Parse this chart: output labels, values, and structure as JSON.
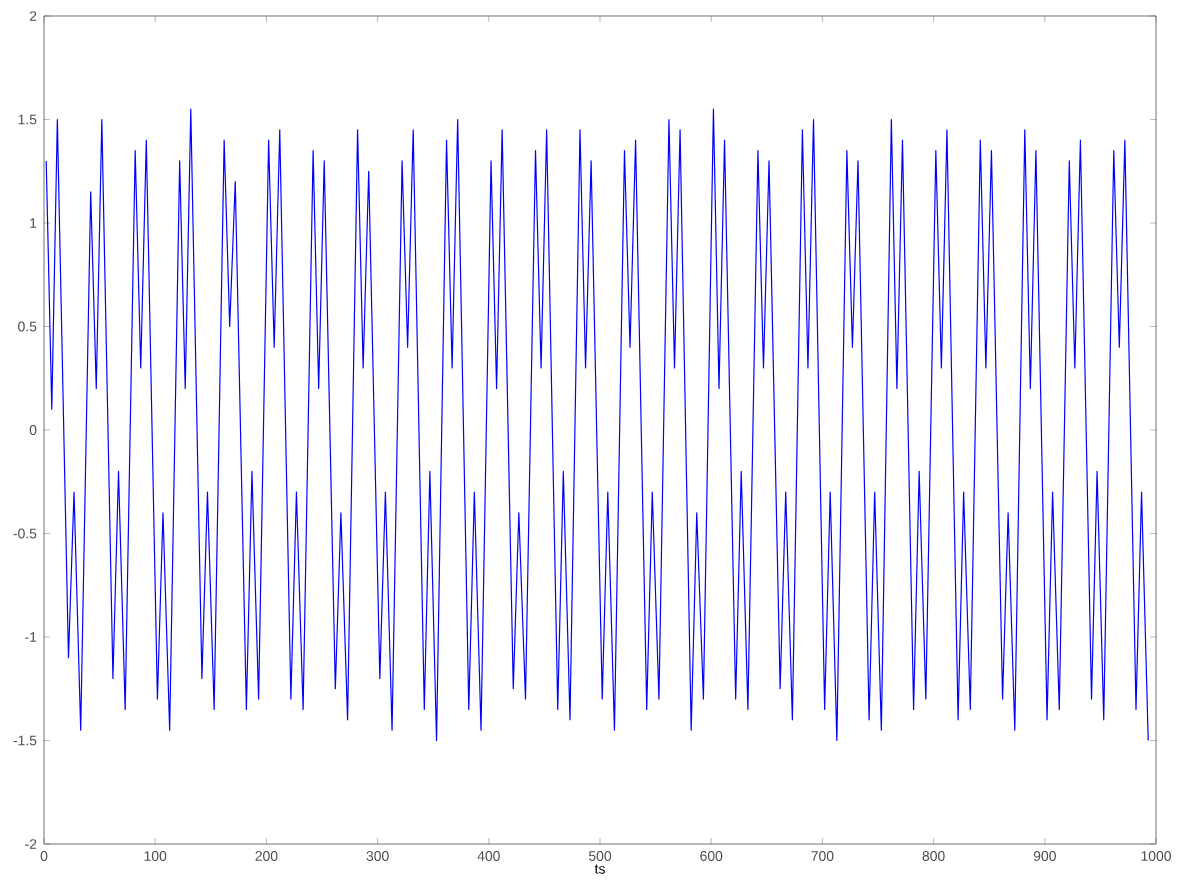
{
  "chart_data": {
    "type": "line",
    "xlabel": "ts",
    "color": "#0000ff",
    "xlim": [
      0,
      1000
    ],
    "ylim": [
      -2,
      2
    ],
    "xticks": [
      0,
      100,
      200,
      300,
      400,
      500,
      600,
      700,
      800,
      900,
      1000
    ],
    "yticks": [
      -2,
      -1.5,
      -1,
      -0.5,
      0,
      0.5,
      1,
      1.5,
      2
    ],
    "grid": false,
    "marker": "none",
    "line_style": "solid",
    "x": [
      2,
      7,
      12,
      22,
      27,
      33,
      42,
      47,
      52,
      62,
      67,
      73,
      82,
      87,
      92,
      102,
      107,
      113,
      122,
      127,
      132,
      142,
      147,
      153,
      162,
      167,
      172,
      182,
      187,
      193,
      202,
      207,
      212,
      222,
      227,
      233,
      242,
      247,
      252,
      262,
      267,
      273,
      282,
      287,
      292,
      302,
      307,
      313,
      322,
      327,
      332,
      342,
      347,
      353,
      362,
      367,
      372,
      382,
      387,
      393,
      402,
      407,
      412,
      422,
      427,
      433,
      442,
      447,
      452,
      462,
      467,
      473,
      482,
      487,
      492,
      502,
      507,
      513,
      522,
      527,
      532,
      542,
      547,
      553,
      562,
      567,
      572,
      582,
      587,
      593,
      602,
      607,
      612,
      622,
      627,
      633,
      642,
      647,
      652,
      662,
      667,
      673,
      682,
      687,
      692,
      702,
      707,
      713,
      722,
      727,
      732,
      742,
      747,
      753,
      762,
      767,
      772,
      782,
      787,
      793,
      802,
      807,
      812,
      822,
      827,
      833,
      842,
      847,
      852,
      862,
      867,
      873,
      882,
      887,
      892,
      902,
      907,
      913,
      922,
      927,
      932,
      942,
      947,
      953,
      962,
      967,
      972,
      982,
      987,
      993
    ],
    "values": [
      1.3,
      0.1,
      1.5,
      -1.1,
      -0.3,
      -1.45,
      1.15,
      0.2,
      1.5,
      -1.2,
      -0.2,
      -1.35,
      1.35,
      0.3,
      1.4,
      -1.3,
      -0.4,
      -1.45,
      1.3,
      0.2,
      1.55,
      -1.2,
      -0.3,
      -1.35,
      1.4,
      0.5,
      1.2,
      -1.35,
      -0.2,
      -1.3,
      1.4,
      0.4,
      1.45,
      -1.3,
      -0.3,
      -1.35,
      1.35,
      0.2,
      1.3,
      -1.25,
      -0.4,
      -1.4,
      1.45,
      0.3,
      1.25,
      -1.2,
      -0.3,
      -1.45,
      1.3,
      0.4,
      1.45,
      -1.35,
      -0.2,
      -1.5,
      1.4,
      0.3,
      1.5,
      -1.35,
      -0.3,
      -1.45,
      1.3,
      0.2,
      1.45,
      -1.25,
      -0.4,
      -1.3,
      1.35,
      0.3,
      1.45,
      -1.35,
      -0.2,
      -1.4,
      1.45,
      0.3,
      1.3,
      -1.3,
      -0.3,
      -1.45,
      1.35,
      0.4,
      1.4,
      -1.35,
      -0.3,
      -1.3,
      1.5,
      0.3,
      1.45,
      -1.45,
      -0.4,
      -1.3,
      1.55,
      0.2,
      1.4,
      -1.3,
      -0.2,
      -1.35,
      1.35,
      0.3,
      1.3,
      -1.25,
      -0.3,
      -1.4,
      1.45,
      0.3,
      1.5,
      -1.35,
      -0.3,
      -1.5,
      1.35,
      0.4,
      1.3,
      -1.4,
      -0.3,
      -1.45,
      1.5,
      0.2,
      1.4,
      -1.35,
      -0.2,
      -1.3,
      1.35,
      0.3,
      1.45,
      -1.4,
      -0.3,
      -1.35,
      1.4,
      0.3,
      1.35,
      -1.3,
      -0.4,
      -1.45,
      1.45,
      0.2,
      1.35,
      -1.4,
      -0.3,
      -1.35,
      1.3,
      0.3,
      1.4,
      -1.3,
      -0.2,
      -1.4,
      1.35,
      0.4,
      1.4,
      -1.35,
      -0.3,
      -1.5
    ]
  }
}
